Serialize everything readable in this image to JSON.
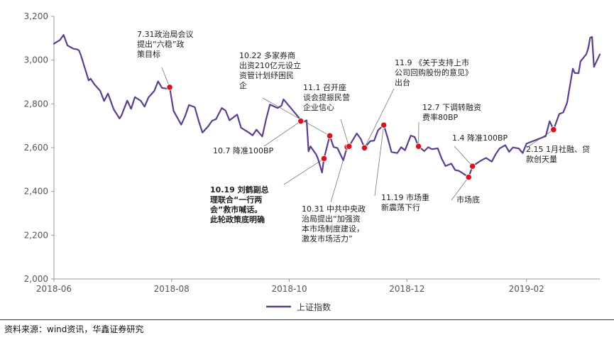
{
  "source": "资料来源：wind资讯，华鑫证券研究",
  "colors": {
    "line": "#5b3f8e",
    "marker": "#d7141c",
    "axis": "#999999",
    "leader": "#777777"
  },
  "chart_data": {
    "type": "line",
    "series_name": "上证指数",
    "ylim": [
      2000,
      3200
    ],
    "yticks": [
      2000,
      2200,
      2400,
      2600,
      2800,
      3000,
      3200
    ],
    "ytick_labels": [
      "2,000",
      "2,200",
      "2,400",
      "2,600",
      "2,800",
      "3,000",
      "3,200"
    ],
    "x_range": [
      "2018-06-01",
      "2019-03-11"
    ],
    "xticks": [
      {
        "date": "2018-06-01",
        "label": "2018-06"
      },
      {
        "date": "2018-08-01",
        "label": "2018-08"
      },
      {
        "date": "2018-10-01",
        "label": "2018-10"
      },
      {
        "date": "2018-12-01",
        "label": "2018-12"
      },
      {
        "date": "2019-02-01",
        "label": "2019-02"
      }
    ],
    "points": [
      [
        "2018-06-01",
        3075
      ],
      [
        "2018-06-04",
        3091
      ],
      [
        "2018-06-06",
        3115
      ],
      [
        "2018-06-08",
        3067
      ],
      [
        "2018-06-11",
        3052
      ],
      [
        "2018-06-13",
        3049
      ],
      [
        "2018-06-14",
        3044
      ],
      [
        "2018-06-15",
        3022
      ],
      [
        "2018-06-19",
        2907
      ],
      [
        "2018-06-20",
        2915
      ],
      [
        "2018-06-22",
        2889
      ],
      [
        "2018-06-25",
        2859
      ],
      [
        "2018-06-27",
        2813
      ],
      [
        "2018-06-29",
        2847
      ],
      [
        "2018-07-02",
        2775
      ],
      [
        "2018-07-05",
        2733
      ],
      [
        "2018-07-06",
        2747
      ],
      [
        "2018-07-09",
        2815
      ],
      [
        "2018-07-11",
        2777
      ],
      [
        "2018-07-13",
        2831
      ],
      [
        "2018-07-16",
        2814
      ],
      [
        "2018-07-18",
        2787
      ],
      [
        "2018-07-20",
        2829
      ],
      [
        "2018-07-23",
        2859
      ],
      [
        "2018-07-25",
        2903
      ],
      [
        "2018-07-27",
        2873
      ],
      [
        "2018-07-30",
        2869
      ],
      [
        "2018-07-31",
        2876
      ],
      [
        "2018-08-02",
        2768
      ],
      [
        "2018-08-06",
        2705
      ],
      [
        "2018-08-08",
        2744
      ],
      [
        "2018-08-10",
        2795
      ],
      [
        "2018-08-13",
        2785
      ],
      [
        "2018-08-15",
        2723
      ],
      [
        "2018-08-17",
        2669
      ],
      [
        "2018-08-20",
        2698
      ],
      [
        "2018-08-22",
        2723
      ],
      [
        "2018-08-24",
        2730
      ],
      [
        "2018-08-27",
        2781
      ],
      [
        "2018-08-29",
        2769
      ],
      [
        "2018-08-31",
        2725
      ],
      [
        "2018-09-04",
        2751
      ],
      [
        "2018-09-06",
        2691
      ],
      [
        "2018-09-10",
        2669
      ],
      [
        "2018-09-12",
        2656
      ],
      [
        "2018-09-14",
        2682
      ],
      [
        "2018-09-17",
        2651
      ],
      [
        "2018-09-19",
        2730
      ],
      [
        "2018-09-21",
        2797
      ],
      [
        "2018-09-25",
        2781
      ],
      [
        "2018-09-27",
        2792
      ],
      [
        "2018-09-28",
        2821
      ],
      [
        "2018-10-08",
        2716
      ],
      [
        "2018-10-10",
        2725
      ],
      [
        "2018-10-11",
        2583
      ],
      [
        "2018-10-12",
        2606
      ],
      [
        "2018-10-15",
        2568
      ],
      [
        "2018-10-16",
        2546
      ],
      [
        "2018-10-18",
        2486
      ],
      [
        "2018-10-19",
        2550
      ],
      [
        "2018-10-22",
        2654
      ],
      [
        "2018-10-24",
        2603
      ],
      [
        "2018-10-26",
        2598
      ],
      [
        "2018-10-29",
        2542
      ],
      [
        "2018-10-31",
        2603
      ],
      [
        "2018-11-01",
        2606
      ],
      [
        "2018-11-05",
        2665
      ],
      [
        "2018-11-07",
        2641
      ],
      [
        "2018-11-09",
        2599
      ],
      [
        "2018-11-12",
        2630
      ],
      [
        "2018-11-14",
        2632
      ],
      [
        "2018-11-16",
        2679
      ],
      [
        "2018-11-19",
        2703
      ],
      [
        "2018-11-21",
        2645
      ],
      [
        "2018-11-23",
        2580
      ],
      [
        "2018-11-26",
        2575
      ],
      [
        "2018-11-28",
        2602
      ],
      [
        "2018-11-30",
        2588
      ],
      [
        "2018-12-03",
        2655
      ],
      [
        "2018-12-05",
        2649
      ],
      [
        "2018-12-07",
        2606
      ],
      [
        "2018-12-10",
        2584
      ],
      [
        "2018-12-12",
        2602
      ],
      [
        "2018-12-14",
        2593
      ],
      [
        "2018-12-17",
        2597
      ],
      [
        "2018-12-19",
        2550
      ],
      [
        "2018-12-21",
        2516
      ],
      [
        "2018-12-24",
        2527
      ],
      [
        "2018-12-26",
        2498
      ],
      [
        "2018-12-28",
        2494
      ],
      [
        "2019-01-02",
        2465
      ],
      [
        "2019-01-04",
        2515
      ],
      [
        "2019-01-07",
        2533
      ],
      [
        "2019-01-09",
        2544
      ],
      [
        "2019-01-11",
        2553
      ],
      [
        "2019-01-14",
        2536
      ],
      [
        "2019-01-16",
        2570
      ],
      [
        "2019-01-18",
        2596
      ],
      [
        "2019-01-21",
        2611
      ],
      [
        "2019-01-23",
        2581
      ],
      [
        "2019-01-25",
        2601
      ],
      [
        "2019-01-28",
        2596
      ],
      [
        "2019-01-30",
        2575
      ],
      [
        "2019-02-01",
        2618
      ],
      [
        "2019-02-11",
        2653
      ],
      [
        "2019-02-13",
        2721
      ],
      [
        "2019-02-15",
        2682
      ],
      [
        "2019-02-18",
        2754
      ],
      [
        "2019-02-20",
        2761
      ],
      [
        "2019-02-22",
        2804
      ],
      [
        "2019-02-25",
        2961
      ],
      [
        "2019-02-26",
        2941
      ],
      [
        "2019-02-28",
        2940
      ],
      [
        "2019-03-01",
        2994
      ],
      [
        "2019-03-04",
        3027
      ],
      [
        "2019-03-05",
        3054
      ],
      [
        "2019-03-06",
        3102
      ],
      [
        "2019-03-07",
        3106
      ],
      [
        "2019-03-08",
        2969
      ],
      [
        "2019-03-11",
        3026
      ]
    ],
    "events": [
      {
        "date": "2018-07-31",
        "value": 2876,
        "lines": [
          "7.31政治局会议",
          "提出“六稳”政",
          "策目标"
        ]
      },
      {
        "date": "2018-10-07",
        "value": 2721,
        "lines": [
          "10.7 降准100BP"
        ]
      },
      {
        "date": "2018-10-19",
        "value": 2550,
        "bold": true,
        "lines": [
          "10.19 刘鹤副总",
          "理联合“一行两",
          "会”救市喊话。",
          "此轮政策底明确"
        ]
      },
      {
        "date": "2018-10-22",
        "value": 2654,
        "lines": [
          "10.22 多家券商",
          "出资210亿元设立",
          "资管计划纾困民",
          "企"
        ]
      },
      {
        "date": "2018-10-31",
        "value": 2603,
        "lines": [
          "10.31 中共中央政",
          "治局提出“加强资",
          "本市场制度建设，",
          "激发市场活力”"
        ]
      },
      {
        "date": "2018-11-01",
        "value": 2606,
        "lines": [
          "11.1 召开座",
          "谈会提振民营",
          "企业信心"
        ]
      },
      {
        "date": "2018-11-09",
        "value": 2599,
        "lines": [
          "11.9 《关于支持上市",
          "公司回购股份的意见》",
          "出台"
        ]
      },
      {
        "date": "2018-11-19",
        "value": 2703,
        "lines": [
          "11.19 市场重",
          "新震荡下行"
        ]
      },
      {
        "date": "2018-12-07",
        "value": 2606,
        "lines": [
          "12.7 下调转融资",
          "费率80BP"
        ]
      },
      {
        "date": "2019-01-02",
        "value": 2465,
        "lines": [
          "市场底"
        ]
      },
      {
        "date": "2019-01-04",
        "value": 2515,
        "lines": [
          "1.4 降准100BP"
        ]
      },
      {
        "date": "2019-02-15",
        "value": 2682,
        "lines": [
          "2.15 1月社融、贷",
          "款创天量"
        ]
      }
    ]
  }
}
